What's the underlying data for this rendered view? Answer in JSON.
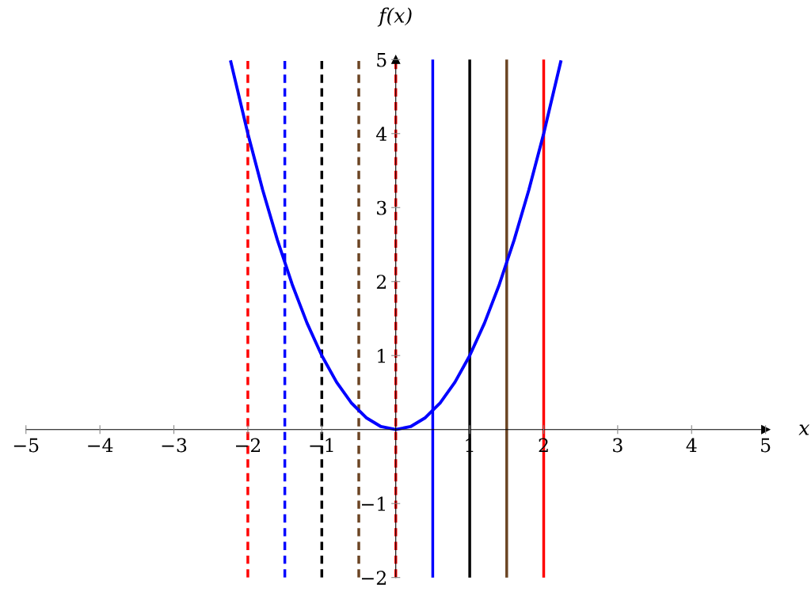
{
  "chart_data": {
    "type": "line",
    "xlabel": "x",
    "ylabel": "f(x)",
    "series": [
      {
        "color": "#0000ff",
        "x": [
          -2.23,
          -2.0,
          -1.8,
          -1.6,
          -1.4,
          -1.2,
          -1.0,
          -0.8,
          -0.6,
          -0.4,
          -0.2,
          0.0,
          0.2,
          0.4,
          0.6,
          0.8,
          1.0,
          1.2,
          1.4,
          1.6,
          1.8,
          2.0,
          2.23
        ],
        "values": [
          4.97,
          4.0,
          3.24,
          2.56,
          1.96,
          1.44,
          1.0,
          0.64,
          0.36,
          0.16,
          0.04,
          0.0,
          0.04,
          0.16,
          0.36,
          0.64,
          1.0,
          1.44,
          1.96,
          2.56,
          3.24,
          4.0,
          4.97
        ]
      }
    ],
    "ref_lines": [
      {
        "axis": "x",
        "value": -2,
        "color": "#ff0000",
        "line_style": "dashed"
      },
      {
        "axis": "x",
        "value": -1.5,
        "color": "#0000ff",
        "line_style": "dashed"
      },
      {
        "axis": "x",
        "value": -1,
        "color": "#000000",
        "line_style": "dashed"
      },
      {
        "axis": "x",
        "value": -0.5,
        "color": "#6b4423",
        "line_style": "dashed"
      },
      {
        "axis": "x",
        "value": 0,
        "color": "#ff0000",
        "line_style": "dashed"
      },
      {
        "axis": "x",
        "value": 0.5,
        "color": "#0000ff",
        "line_style": "solid"
      },
      {
        "axis": "x",
        "value": 1,
        "color": "#000000",
        "line_style": "solid"
      },
      {
        "axis": "x",
        "value": 1.5,
        "color": "#6b4423",
        "line_style": "solid"
      },
      {
        "axis": "x",
        "value": 2,
        "color": "#ff0000",
        "line_style": "solid"
      }
    ],
    "xlim": [
      -5,
      5
    ],
    "ylim": [
      -2,
      5
    ],
    "xticks": [
      {
        "value": -5,
        "label": "−5"
      },
      {
        "value": -4,
        "label": "−4"
      },
      {
        "value": -3,
        "label": "−3"
      },
      {
        "value": -2,
        "label": "−2"
      },
      {
        "value": -1,
        "label": "−1"
      },
      1,
      2,
      3,
      4,
      5
    ],
    "yticks": [
      {
        "value": -2,
        "label": "−2"
      },
      {
        "value": -1,
        "label": "−1"
      },
      1,
      2,
      3,
      4,
      5
    ],
    "grid": false,
    "legend": false,
    "line_style": "solid",
    "marker": "none"
  }
}
